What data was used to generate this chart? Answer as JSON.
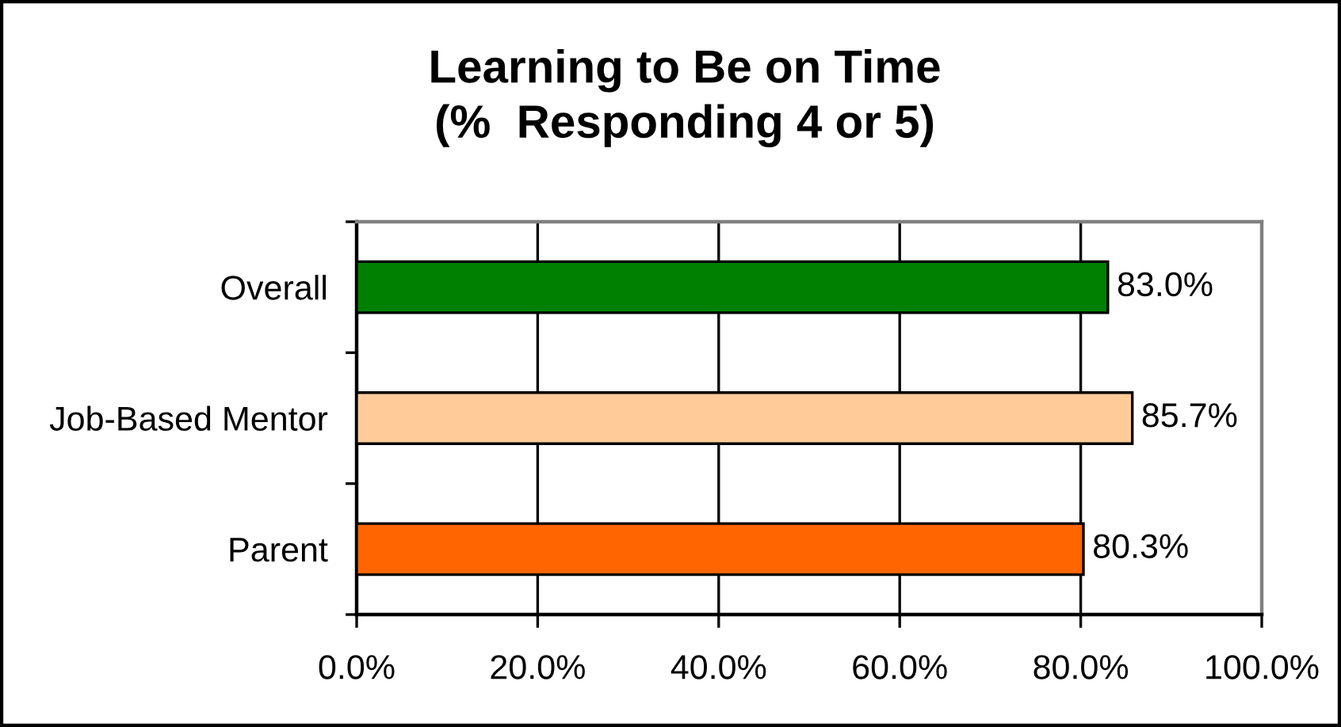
{
  "chart_data": {
    "type": "bar",
    "orientation": "horizontal",
    "title": "Learning to Be on Time\n(%  Responding 4 or 5)",
    "categories": [
      "Overall",
      "Job-Based Mentor",
      "Parent"
    ],
    "values": [
      83.0,
      85.7,
      80.3
    ],
    "colors": [
      "#008000",
      "#ffcc99",
      "#ff6600"
    ],
    "value_labels": [
      "83.0%",
      "85.7%",
      "80.3%"
    ],
    "xlim": [
      0,
      100
    ],
    "xticks": [
      {
        "value": 0,
        "label": "0.0%"
      },
      {
        "value": 20,
        "label": "20.0%"
      },
      {
        "value": 40,
        "label": "40.0%"
      },
      {
        "value": 60,
        "label": "60.0%"
      },
      {
        "value": 80,
        "label": "80.0%"
      },
      {
        "value": 100,
        "label": "100.0%"
      }
    ],
    "grid": "x",
    "legend": false
  }
}
